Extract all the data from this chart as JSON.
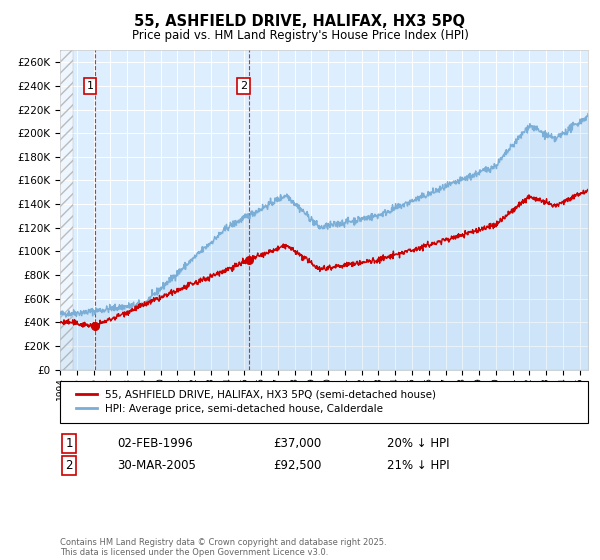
{
  "title": "55, ASHFIELD DRIVE, HALIFAX, HX3 5PQ",
  "subtitle": "Price paid vs. HM Land Registry's House Price Index (HPI)",
  "legend_line1": "55, ASHFIELD DRIVE, HALIFAX, HX3 5PQ (semi-detached house)",
  "legend_line2": "HPI: Average price, semi-detached house, Calderdale",
  "footer": "Contains HM Land Registry data © Crown copyright and database right 2025.\nThis data is licensed under the Open Government Licence v3.0.",
  "annotation1_label": "1",
  "annotation1_date": "02-FEB-1996",
  "annotation1_price": "£37,000",
  "annotation1_hpi": "20% ↓ HPI",
  "annotation1_value": 37000,
  "annotation1_year": 1996.09,
  "annotation2_label": "2",
  "annotation2_date": "30-MAR-2005",
  "annotation2_price": "£92,500",
  "annotation2_hpi": "21% ↓ HPI",
  "annotation2_value": 92500,
  "annotation2_year": 2005.25,
  "sale_color": "#cc0000",
  "hpi_color": "#7aaed6",
  "background_chart": "#ddeeff",
  "ylim_max": 270000,
  "yticks": [
    0,
    20000,
    40000,
    60000,
    80000,
    100000,
    120000,
    140000,
    160000,
    180000,
    200000,
    220000,
    240000,
    260000
  ],
  "xmin": 1994,
  "xmax": 2025.5
}
